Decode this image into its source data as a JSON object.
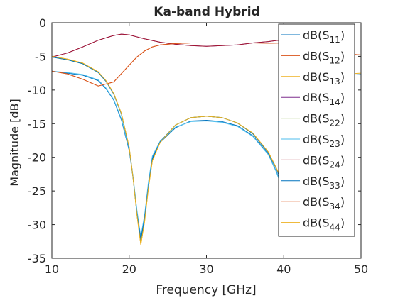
{
  "chart_data": {
    "type": "line",
    "title": "Ka-band Hybrid",
    "xlabel": "Frequency [GHz]",
    "ylabel": "Magnitude [dB]",
    "xlim": [
      10,
      50
    ],
    "ylim": [
      -35,
      0
    ],
    "xticks": [
      "10",
      "20",
      "30",
      "40",
      "50"
    ],
    "yticks": [
      "0",
      "-5",
      "-10",
      "-15",
      "-20",
      "-25",
      "-30",
      "-35"
    ],
    "grid": false,
    "legend_position": "top-right",
    "series": [
      {
        "name": "S11",
        "color": "#0072bd",
        "x": [
          10,
          12,
          14,
          16,
          17,
          18,
          19,
          20,
          20.5,
          21,
          21.5,
          22,
          22.5,
          23,
          24,
          26,
          28,
          30,
          32,
          34,
          36,
          38,
          39,
          40
        ],
        "y": [
          -7.2,
          -7.5,
          -7.8,
          -8.6,
          -9.8,
          -11.5,
          -14.5,
          -19,
          -23,
          -28,
          -32.5,
          -29,
          -24,
          -20,
          -17.8,
          -15.6,
          -14.6,
          -14.5,
          -14.7,
          -15.3,
          -16.8,
          -19.5,
          -22,
          -25
        ]
      },
      {
        "name": "S12",
        "color": "#d95319",
        "x": [
          10,
          12,
          14,
          16,
          18,
          20,
          21,
          22,
          23,
          24,
          26,
          28,
          30,
          32,
          34,
          36,
          38,
          40,
          42,
          44,
          46,
          48,
          50
        ],
        "y": [
          -7.2,
          -7.6,
          -8.4,
          -9.4,
          -8.8,
          -6.3,
          -5.1,
          -4.2,
          -3.6,
          -3.3,
          -3.1,
          -3.0,
          -3.0,
          -3.0,
          -3.0,
          -3.0,
          -3.05,
          -3.0,
          -3.2,
          -3.6,
          -4.2,
          -4.6,
          -4.8
        ]
      },
      {
        "name": "S13",
        "color": "#edb120",
        "x": [
          10,
          12,
          14,
          16,
          17,
          18,
          19,
          20,
          20.5,
          21,
          21.5,
          22,
          22.5,
          23,
          24,
          26,
          28,
          30,
          32,
          34,
          36,
          38,
          39,
          40
        ],
        "y": [
          -5.0,
          -5.4,
          -6.0,
          -7.3,
          -8.6,
          -10.5,
          -13.5,
          -18.5,
          -23,
          -28.5,
          -33,
          -29.5,
          -24.5,
          -20.5,
          -17.8,
          -15.2,
          -14.1,
          -13.9,
          -14.1,
          -14.9,
          -16.4,
          -19.2,
          -21.5,
          -24
        ]
      },
      {
        "name": "S14",
        "color": "#7e2f8e",
        "x": [
          10,
          12,
          14,
          16,
          18,
          19,
          20,
          22,
          24,
          26,
          28,
          30,
          32,
          34,
          36,
          38,
          40,
          42
        ],
        "y": [
          -5.1,
          -4.5,
          -3.6,
          -2.6,
          -1.9,
          -1.7,
          -1.8,
          -2.4,
          -2.9,
          -3.2,
          -3.4,
          -3.5,
          -3.4,
          -3.3,
          -3.0,
          -2.8,
          -2.5,
          -2.2
        ]
      },
      {
        "name": "S22",
        "color": "#77ac30",
        "x": [
          10,
          12,
          14,
          16,
          17,
          18,
          19,
          20,
          20.5,
          21,
          21.5,
          22,
          22.5,
          23,
          24,
          26,
          28,
          30,
          32,
          34,
          36,
          38,
          39,
          40
        ],
        "y": [
          -5.1,
          -5.5,
          -6.1,
          -7.4,
          -8.7,
          -10.6,
          -13.6,
          -18.6,
          -23,
          -28.3,
          -32.7,
          -29.2,
          -24.3,
          -20.3,
          -17.7,
          -15.2,
          -14.1,
          -13.9,
          -14.1,
          -14.9,
          -16.5,
          -19.3,
          -21.6,
          -24.2
        ]
      },
      {
        "name": "S23",
        "color": "#4dbeee",
        "x": [
          10,
          12,
          14,
          16,
          17,
          18,
          19,
          20,
          20.5,
          21,
          21.5,
          22,
          22.5,
          23,
          24,
          26,
          28,
          30,
          32,
          34,
          36,
          38,
          39,
          40
        ],
        "y": [
          -7.2,
          -7.4,
          -7.7,
          -8.5,
          -9.7,
          -11.4,
          -14.3,
          -18.8,
          -22.8,
          -27.8,
          -31.8,
          -28.5,
          -23.6,
          -19.8,
          -17.6,
          -15.5,
          -14.7,
          -14.6,
          -14.8,
          -15.4,
          -16.9,
          -19.6,
          -22.1,
          -25.2
        ]
      },
      {
        "name": "S24",
        "color": "#a2142f",
        "x": [
          10,
          12,
          14,
          16,
          18,
          19,
          20,
          22,
          24,
          26,
          28,
          30,
          32,
          34,
          36,
          38,
          40
        ],
        "y": [
          -5.1,
          -4.5,
          -3.6,
          -2.6,
          -1.9,
          -1.7,
          -1.8,
          -2.4,
          -2.9,
          -3.2,
          -3.4,
          -3.5,
          -3.4,
          -3.3,
          -3.0,
          -2.8,
          -2.5
        ]
      },
      {
        "name": "S33",
        "color": "#0072bd",
        "x": [
          10,
          12,
          14,
          16,
          17,
          18,
          19,
          20,
          20.5,
          21,
          21.5,
          22,
          22.5,
          23,
          24,
          26,
          28,
          30,
          32,
          34,
          36,
          38,
          39,
          40
        ],
        "y": [
          -5.1,
          -5.5,
          -6.1,
          -7.4,
          -8.7,
          -10.6,
          -13.6,
          -18.6,
          -23,
          -28.3,
          -32.2,
          -29,
          -24.2,
          -20.2,
          -17.7,
          -15.2,
          -14.1,
          -13.9,
          -14.1,
          -14.9,
          -16.5,
          -19.3,
          -21.6,
          -24.5
        ]
      },
      {
        "name": "S34",
        "color": "#d95319",
        "x": [
          10,
          12,
          14,
          16,
          18,
          20,
          21,
          22,
          23,
          24,
          26,
          28,
          30,
          32,
          34,
          36,
          38,
          40,
          42,
          44,
          46,
          48,
          50
        ],
        "y": [
          -7.2,
          -7.6,
          -8.4,
          -9.4,
          -8.8,
          -6.3,
          -5.1,
          -4.2,
          -3.6,
          -3.3,
          -3.1,
          -3.0,
          -3.0,
          -3.0,
          -3.0,
          -3.0,
          -3.05,
          -3.0,
          -3.2,
          -3.6,
          -4.2,
          -4.6,
          -4.8
        ]
      },
      {
        "name": "S44",
        "color": "#edb120",
        "x": [
          10,
          12,
          14,
          16,
          17,
          18,
          19,
          20,
          20.5,
          21,
          21.5,
          22,
          22.5,
          23,
          24,
          26,
          28,
          30,
          32,
          34,
          36,
          38,
          39,
          40
        ],
        "y": [
          -5.0,
          -5.4,
          -6.0,
          -7.3,
          -8.6,
          -10.5,
          -13.5,
          -18.5,
          -23,
          -28.5,
          -33,
          -29.5,
          -24.5,
          -20.5,
          -17.8,
          -15.2,
          -14.1,
          -13.9,
          -14.1,
          -14.9,
          -16.4,
          -19.2,
          -21.5,
          -24
        ]
      }
    ],
    "right_edge_fragments": [
      {
        "color": "#d95319",
        "x": [
          48.5,
          50
        ],
        "y": [
          -4.8,
          -4.8
        ]
      },
      {
        "color": "#0072bd",
        "x": [
          48.5,
          50
        ],
        "y": [
          -7.8,
          -7.7
        ]
      },
      {
        "color": "#edb120",
        "x": [
          48.5,
          50
        ],
        "y": [
          -7.6,
          -7.5
        ]
      }
    ]
  }
}
